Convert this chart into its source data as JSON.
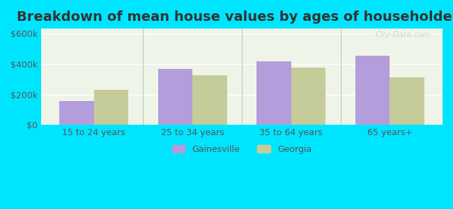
{
  "title": "Breakdown of mean house values by ages of householders",
  "categories": [
    "15 to 24 years",
    "25 to 34 years",
    "35 to 64 years",
    "65 years+"
  ],
  "gainesville_values": [
    155000,
    365000,
    415000,
    455000
  ],
  "georgia_values": [
    230000,
    325000,
    375000,
    310000
  ],
  "gainesville_color": "#b39ddb",
  "georgia_color": "#c5cc9a",
  "background_color": "#00e5ff",
  "yticks": [
    0,
    200000,
    400000,
    600000
  ],
  "ytick_labels": [
    "$0",
    "$200k",
    "$400k",
    "$600k"
  ],
  "ylim": [
    0,
    630000
  ],
  "bar_width": 0.35,
  "legend_labels": [
    "Gainesville",
    "Georgia"
  ],
  "watermark": "City-Data.com",
  "title_fontsize": 14,
  "tick_fontsize": 9,
  "legend_fontsize": 9
}
